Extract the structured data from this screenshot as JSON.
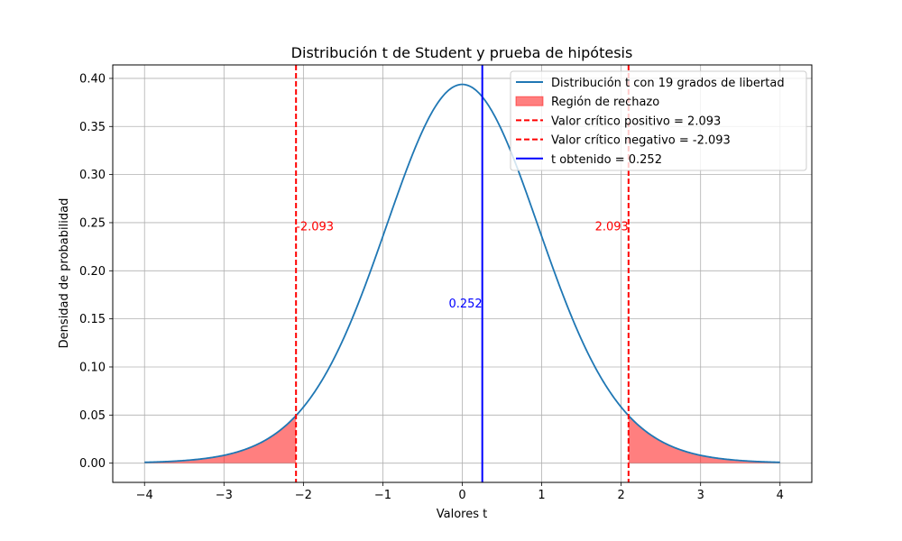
{
  "chart_data": {
    "type": "line",
    "title": "Distribución t de Student y prueba de hipótesis",
    "xlabel": "Valores t",
    "ylabel": "Densidad de probabilidad",
    "xlim": [
      -4.4,
      4.4
    ],
    "ylim": [
      -0.02,
      0.414
    ],
    "xticks": [
      -4,
      -3,
      -2,
      -1,
      0,
      1,
      2,
      3,
      4
    ],
    "xtick_labels": [
      "−4",
      "−3",
      "−2",
      "−1",
      "0",
      "1",
      "2",
      "3",
      "4"
    ],
    "yticks": [
      0.0,
      0.05,
      0.1,
      0.15,
      0.2,
      0.25,
      0.3,
      0.35,
      0.4
    ],
    "ytick_labels": [
      "0.00",
      "0.05",
      "0.10",
      "0.15",
      "0.20",
      "0.25",
      "0.30",
      "0.35",
      "0.40"
    ],
    "grid": true,
    "legend_position": "top-right",
    "distribution": {
      "df": 19,
      "x_range": [
        -4,
        4
      ]
    },
    "critical_value_positive": 2.093,
    "critical_value_negative": -2.093,
    "t_obtained": 0.252,
    "series": [
      {
        "name": "Distribución t con 19 grados de libertad",
        "kind": "line",
        "color": "#1f77b4"
      },
      {
        "name": "Región de rechazo",
        "kind": "fill",
        "color": "#ff0000",
        "opacity": 0.5
      },
      {
        "name": "Valor crítico positivo = 2.093",
        "kind": "vline-dashed",
        "color": "#ff0000",
        "x": 2.093
      },
      {
        "name": "Valor crítico negativo = -2.093",
        "kind": "vline-dashed",
        "color": "#ff0000",
        "x": -2.093
      },
      {
        "name": "t obtenido = 0.252",
        "kind": "vline",
        "color": "#0000ff",
        "x": 0.252
      }
    ],
    "annotations": [
      {
        "text": "-2.093",
        "x": -2.093,
        "y": 0.24,
        "color": "#ff0000"
      },
      {
        "text": "2.093",
        "x": 2.093,
        "y": 0.24,
        "color": "#ff0000"
      },
      {
        "text": "0.252",
        "x": 0.252,
        "y": 0.16,
        "color": "#0000ff"
      }
    ]
  }
}
